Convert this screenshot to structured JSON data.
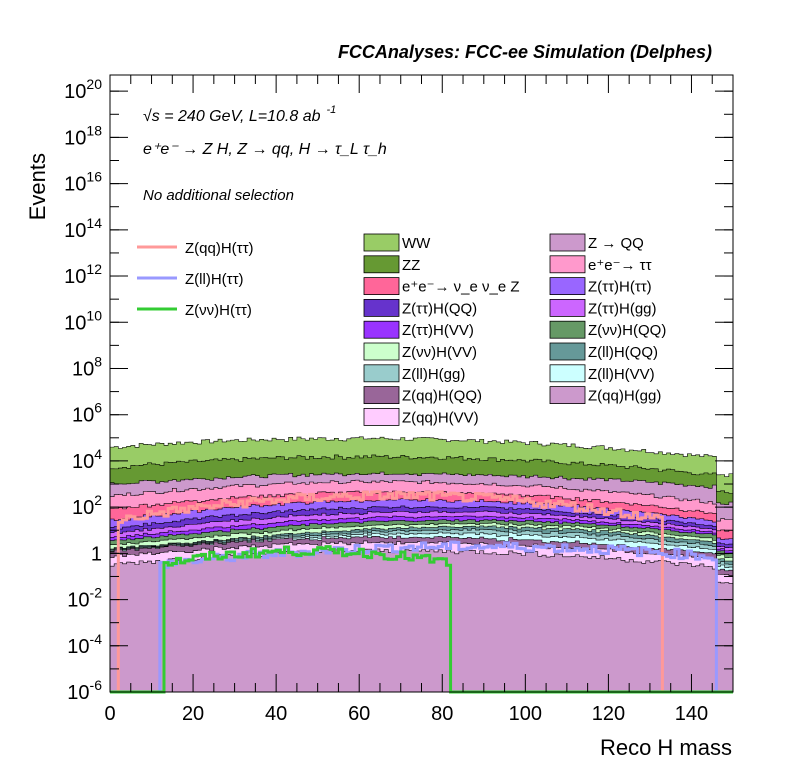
{
  "chart_data": {
    "type": "area",
    "title": "FCCAnalyses: FCC-ee Simulation (Delphes)",
    "xlabel": "Reco H mass",
    "ylabel": "Events",
    "xlim": [
      0,
      150
    ],
    "ylim_log10": [
      -6,
      20.7
    ],
    "log_y": true,
    "x_ticks": [
      0,
      20,
      40,
      60,
      80,
      100,
      120,
      140
    ],
    "y_ticks": [
      {
        "exp": -6,
        "label": "10",
        "sup": "-6"
      },
      {
        "exp": -4,
        "label": "10",
        "sup": "-4"
      },
      {
        "exp": -2,
        "label": "10",
        "sup": "-2"
      },
      {
        "exp": 0,
        "label": "1",
        "sup": ""
      },
      {
        "exp": 2,
        "label": "10",
        "sup": "2"
      },
      {
        "exp": 4,
        "label": "10",
        "sup": "4"
      },
      {
        "exp": 6,
        "label": "10",
        "sup": "6"
      },
      {
        "exp": 8,
        "label": "10",
        "sup": "8"
      },
      {
        "exp": 10,
        "label": "10",
        "sup": "10"
      },
      {
        "exp": 12,
        "label": "10",
        "sup": "12"
      },
      {
        "exp": 14,
        "label": "10",
        "sup": "14"
      },
      {
        "exp": 16,
        "label": "10",
        "sup": "16"
      },
      {
        "exp": 18,
        "label": "10",
        "sup": "18"
      },
      {
        "exp": 20,
        "label": "10",
        "sup": "20"
      }
    ],
    "annotations": {
      "energy_line": {
        "sqrt": "√s",
        "rest": " = 240 GeV, L=10.8 ab",
        "sup": "-1"
      },
      "process_line": "e⁺e⁻ → Z H, Z → qq, H → τ_L τ_h",
      "selection": "No additional selection"
    },
    "stack_bins": 150,
    "stacked_series": [
      {
        "name": "WW",
        "color": "#99cc66",
        "log10_peak": 4.9,
        "peak_x": 58,
        "width": 45,
        "floor": 0.8
      },
      {
        "name": "ZZ",
        "color": "#669933",
        "log10_peak": 4.1,
        "peak_x": 62,
        "width": 42,
        "floor": 0.5
      },
      {
        "name": "Z → QQ",
        "color": "#cc99cc",
        "log10_peak": 3.2,
        "peak_x": 70,
        "width": 55,
        "floor": 1.5
      },
      {
        "name": "e⁺e⁻→ ττ",
        "color": "#ff99cc",
        "log10_peak": 2.9,
        "peak_x": 64,
        "width": 40,
        "floor": 0.8
      },
      {
        "name": "e⁺e⁻→ ν_e ν_e Z",
        "color": "#ff6699",
        "log10_peak": 2.4,
        "peak_x": 66,
        "width": 38,
        "floor": 0.3
      },
      {
        "name": "Z(ττ)H(ττ)",
        "color": "#9966ff",
        "log10_peak": 2.0,
        "peak_x": 70,
        "width": 35,
        "floor": 0.3
      },
      {
        "name": "Z(ττ)H(QQ)",
        "color": "#6633cc",
        "log10_peak": 1.6,
        "peak_x": 72,
        "width": 34,
        "floor": 0.2
      },
      {
        "name": "Z(ττ)H(gg)",
        "color": "#cc66ff",
        "log10_peak": 1.4,
        "peak_x": 74,
        "width": 34,
        "floor": 0.2
      },
      {
        "name": "Z(ττ)H(VV)",
        "color": "#9933ff",
        "log10_peak": 1.1,
        "peak_x": 76,
        "width": 34,
        "floor": 0.1
      },
      {
        "name": "Z(νν)H(QQ)",
        "color": "#669966",
        "log10_peak": 0.9,
        "peak_x": 80,
        "width": 40,
        "floor": 0.1
      },
      {
        "name": "Z(νν)H(VV)",
        "color": "#ccffcc",
        "log10_peak": 0.7,
        "peak_x": 80,
        "width": 38,
        "floor": 0.1
      },
      {
        "name": "Z(ll)H(QQ)",
        "color": "#669999",
        "log10_peak": 0.6,
        "peak_x": 92,
        "width": 30,
        "floor": 0.1
      },
      {
        "name": "Z(ll)H(gg)",
        "color": "#99cccc",
        "log10_peak": 0.5,
        "peak_x": 92,
        "width": 28,
        "floor": 0.1
      },
      {
        "name": "Z(ll)H(VV)",
        "color": "#ccffff",
        "log10_peak": 0.4,
        "peak_x": 92,
        "width": 28,
        "floor": 0.1
      },
      {
        "name": "Z(qq)H(QQ)",
        "color": "#996699",
        "log10_peak": 0.3,
        "peak_x": 70,
        "width": 40,
        "floor": 0.05
      },
      {
        "name": "Z(qq)H(VV)",
        "color": "#ffccff",
        "log10_peak": 0.2,
        "peak_x": 70,
        "width": 40,
        "floor": 0.05
      },
      {
        "name": "Z(qq)H(gg)",
        "color": "#cc99cc",
        "log10_peak": 0.1,
        "peak_x": 70,
        "width": 40,
        "floor": 0.05
      }
    ],
    "signal_series": [
      {
        "name": "Z(qq)H(ττ)",
        "color": "#ff9999",
        "log10_peak": 2.5,
        "peak_x": 68,
        "width": 30,
        "x_range": [
          2,
          133
        ]
      },
      {
        "name": "Z(ll)H(ττ)",
        "color": "#9999ff",
        "log10_peak": 0.3,
        "peak_x": 88,
        "width": 40,
        "x_range": [
          12,
          146
        ]
      },
      {
        "name": "Z(νν)H(ττ)",
        "color": "#33cc33",
        "log10_peak": 0.1,
        "peak_x": 48,
        "width": 22,
        "x_range": [
          13,
          82
        ]
      }
    ],
    "legend_left": [
      "Z(qq)H(ττ)",
      "Z(ll)H(ττ)",
      "Z(νν)H(ττ)"
    ],
    "legend_mid": [
      "WW",
      "ZZ",
      "e⁺e⁻→ ν_e ν_e Z",
      "Z(ττ)H(QQ)",
      "Z(ττ)H(VV)",
      "Z(νν)H(VV)",
      "Z(ll)H(gg)",
      "Z(qq)H(QQ)",
      "Z(qq)H(VV)"
    ],
    "legend_right": [
      "Z → QQ",
      "e⁺e⁻→ ττ",
      "Z(ττ)H(ττ)",
      "Z(ττ)H(gg)",
      "Z(νν)H(QQ)",
      "Z(ll)H(QQ)",
      "Z(ll)H(VV)",
      "Z(qq)H(gg)"
    ]
  }
}
